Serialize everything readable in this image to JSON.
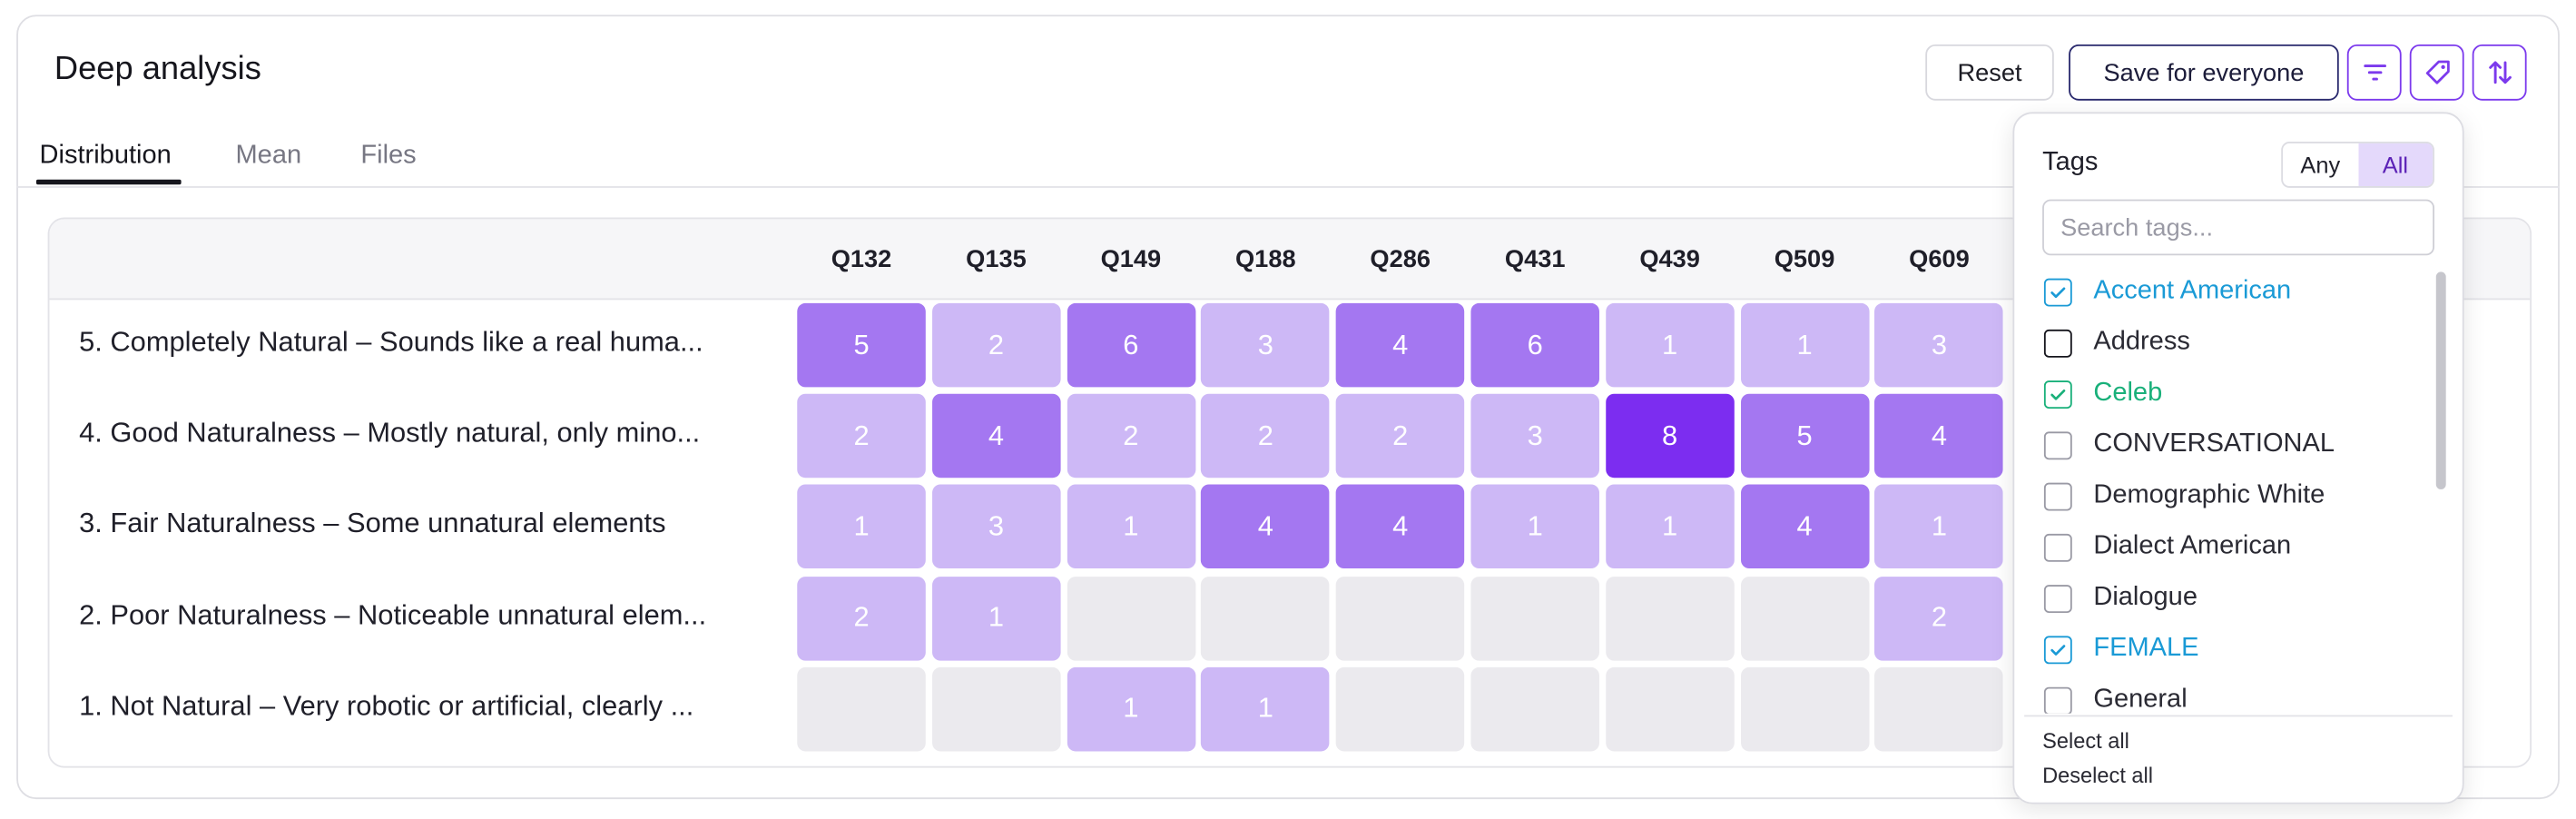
{
  "panel": {
    "title": "Deep analysis"
  },
  "tabs": [
    {
      "label": "Distribution",
      "active": true
    },
    {
      "label": "Mean",
      "active": false
    },
    {
      "label": "Files",
      "active": false
    }
  ],
  "toolbar": {
    "reset_label": "Reset",
    "save_label": "Save for everyone",
    "icons": [
      "filter-icon",
      "tag-icon",
      "sort-icon"
    ],
    "accent_color": "#7c3aed"
  },
  "matrix": {
    "columns": [
      "Q132",
      "Q135",
      "Q149",
      "Q188",
      "Q286",
      "Q431",
      "Q439",
      "Q509",
      "Q609"
    ],
    "rows": [
      {
        "label": "5. Completely Natural – Sounds like a real huma...",
        "values": [
          5,
          2,
          6,
          3,
          4,
          6,
          1,
          1,
          3
        ]
      },
      {
        "label": "4. Good Naturalness – Mostly natural, only mino...",
        "values": [
          2,
          4,
          2,
          2,
          2,
          3,
          8,
          5,
          4
        ]
      },
      {
        "label": "3. Fair Naturalness – Some unnatural elements",
        "values": [
          1,
          3,
          1,
          4,
          4,
          1,
          1,
          4,
          1
        ]
      },
      {
        "label": "2. Poor Naturalness – Noticeable unnatural elem...",
        "values": [
          2,
          1,
          null,
          null,
          null,
          null,
          null,
          null,
          2
        ]
      },
      {
        "label": "1. Not Natural – Very robotic or artificial, clearly ...",
        "values": [
          null,
          null,
          1,
          1,
          null,
          null,
          null,
          null,
          null
        ]
      }
    ],
    "colors": {
      "empty": "#ebeaee",
      "low": "#cdb8f6",
      "mid": "#a477f1",
      "high": "#7c2df0"
    }
  },
  "tags_popup": {
    "title": "Tags",
    "match_options": [
      "Any",
      "All"
    ],
    "match_selected": "All",
    "search_placeholder": "Search tags...",
    "items": [
      {
        "label": "Accent American",
        "checked": true,
        "color": "#1a9ad6"
      },
      {
        "label": "Address",
        "checked": false,
        "color": "#16161d"
      },
      {
        "label": "Celeb",
        "checked": true,
        "color": "#19b07a"
      },
      {
        "label": "CONVERSATIONAL",
        "checked": false,
        "color": "#9a9aa5"
      },
      {
        "label": "Demographic White",
        "checked": false,
        "color": "#9a9aa5"
      },
      {
        "label": "Dialect American",
        "checked": false,
        "color": "#9a9aa5"
      },
      {
        "label": "Dialogue",
        "checked": false,
        "color": "#9a9aa5"
      },
      {
        "label": "FEMALE",
        "checked": true,
        "color": "#1a9ad6"
      },
      {
        "label": "General",
        "checked": false,
        "color": "#9a9aa5"
      }
    ],
    "select_all_label": "Select all",
    "deselect_all_label": "Deselect all"
  }
}
